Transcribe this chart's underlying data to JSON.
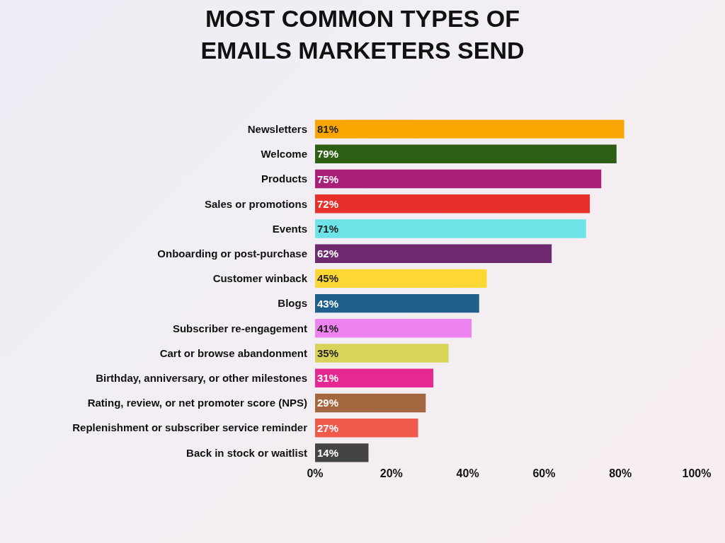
{
  "chart_data": {
    "type": "bar",
    "orientation": "horizontal",
    "title": "MOST COMMON TYPES OF EMAILS MARKETERS SEND",
    "categories": [
      "Newsletters",
      "Welcome",
      "Products",
      "Sales or promotions",
      "Events",
      "Onboarding or post-purchase",
      "Customer winback",
      "Blogs",
      "Subscriber re-engagement",
      "Cart or browse abandonment",
      "Birthday, anniversary, or other milestones",
      "Rating, review, or net promoter score (NPS)",
      "Replenishment or subscriber service reminder",
      "Back in stock or waitlist"
    ],
    "values": [
      81,
      79,
      75,
      72,
      71,
      62,
      45,
      43,
      41,
      35,
      31,
      29,
      27,
      14
    ],
    "value_labels": [
      "81%",
      "79%",
      "75%",
      "72%",
      "71%",
      "62%",
      "45%",
      "43%",
      "41%",
      "35%",
      "31%",
      "29%",
      "27%",
      "14%"
    ],
    "colors": [
      "#f9a602",
      "#2e5e14",
      "#a8207a",
      "#e8302a",
      "#6ce3e6",
      "#6e2a6f",
      "#fdd835",
      "#1f5f8b",
      "#ee82ee",
      "#d8d45a",
      "#e52892",
      "#a5673f",
      "#f05a4a",
      "#444444"
    ],
    "xlim": [
      0,
      100
    ],
    "xticks": [
      {
        "value": 0,
        "label": "0%"
      },
      {
        "value": 20,
        "label": "20%"
      },
      {
        "value": 40,
        "label": "40%"
      },
      {
        "value": 60,
        "label": "60%"
      },
      {
        "value": 80,
        "label": "80%"
      },
      {
        "value": 100,
        "label": "100%"
      }
    ],
    "grid": false
  }
}
